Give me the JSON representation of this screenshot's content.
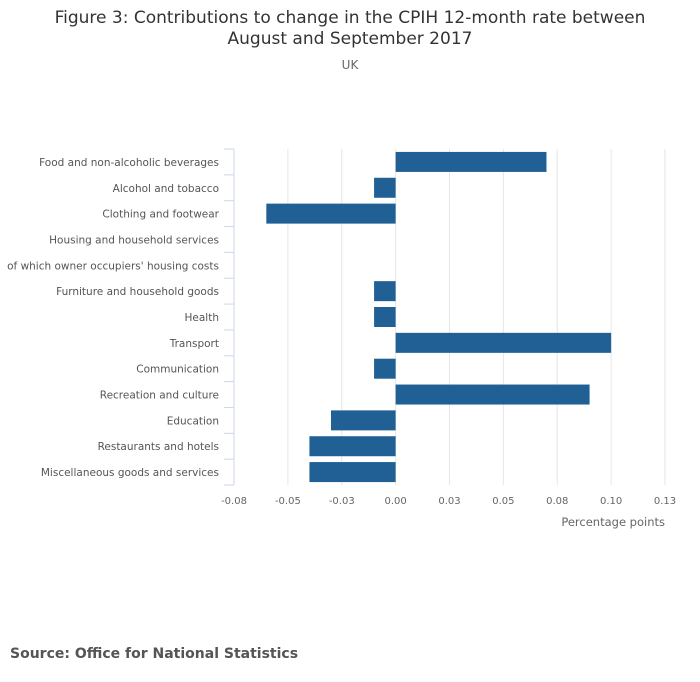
{
  "chart_data": {
    "type": "bar",
    "orientation": "horizontal",
    "title_lines": [
      "Figure 3: Contributions to change in the CPIH 12-month rate between",
      "August and September 2017"
    ],
    "subtitle": "UK",
    "xlabel": "Percentage points",
    "ylabel": "",
    "categories": [
      "Food and non-alcoholic beverages",
      "Alcohol and tobacco",
      "Clothing and footwear",
      "Housing and household services",
      "of which owner occupiers' housing costs",
      "Furniture and household goods",
      "Health",
      "Transport",
      "Communication",
      "Recreation and culture",
      "Education",
      "Restaurants and hotels",
      "Miscellaneous goods and services"
    ],
    "values": [
      0.07,
      -0.01,
      -0.06,
      0.0,
      0.0,
      -0.01,
      -0.01,
      0.1,
      -0.01,
      0.09,
      -0.03,
      -0.04,
      -0.04
    ],
    "xlim": [
      -0.075,
      0.125
    ],
    "xticks": [
      -0.075,
      -0.05,
      -0.025,
      0.0,
      0.025,
      0.05,
      0.075,
      0.1,
      0.125
    ],
    "xtick_labels": [
      "-0.08",
      "-0.05",
      "-0.03",
      "0.00",
      "0.03",
      "0.05",
      "0.08",
      "0.10",
      "0.13"
    ],
    "grid": true,
    "legend": "none",
    "bar_color": "#206095",
    "grid_color": "#e6e6e6",
    "source": "Source: Office for National Statistics"
  }
}
